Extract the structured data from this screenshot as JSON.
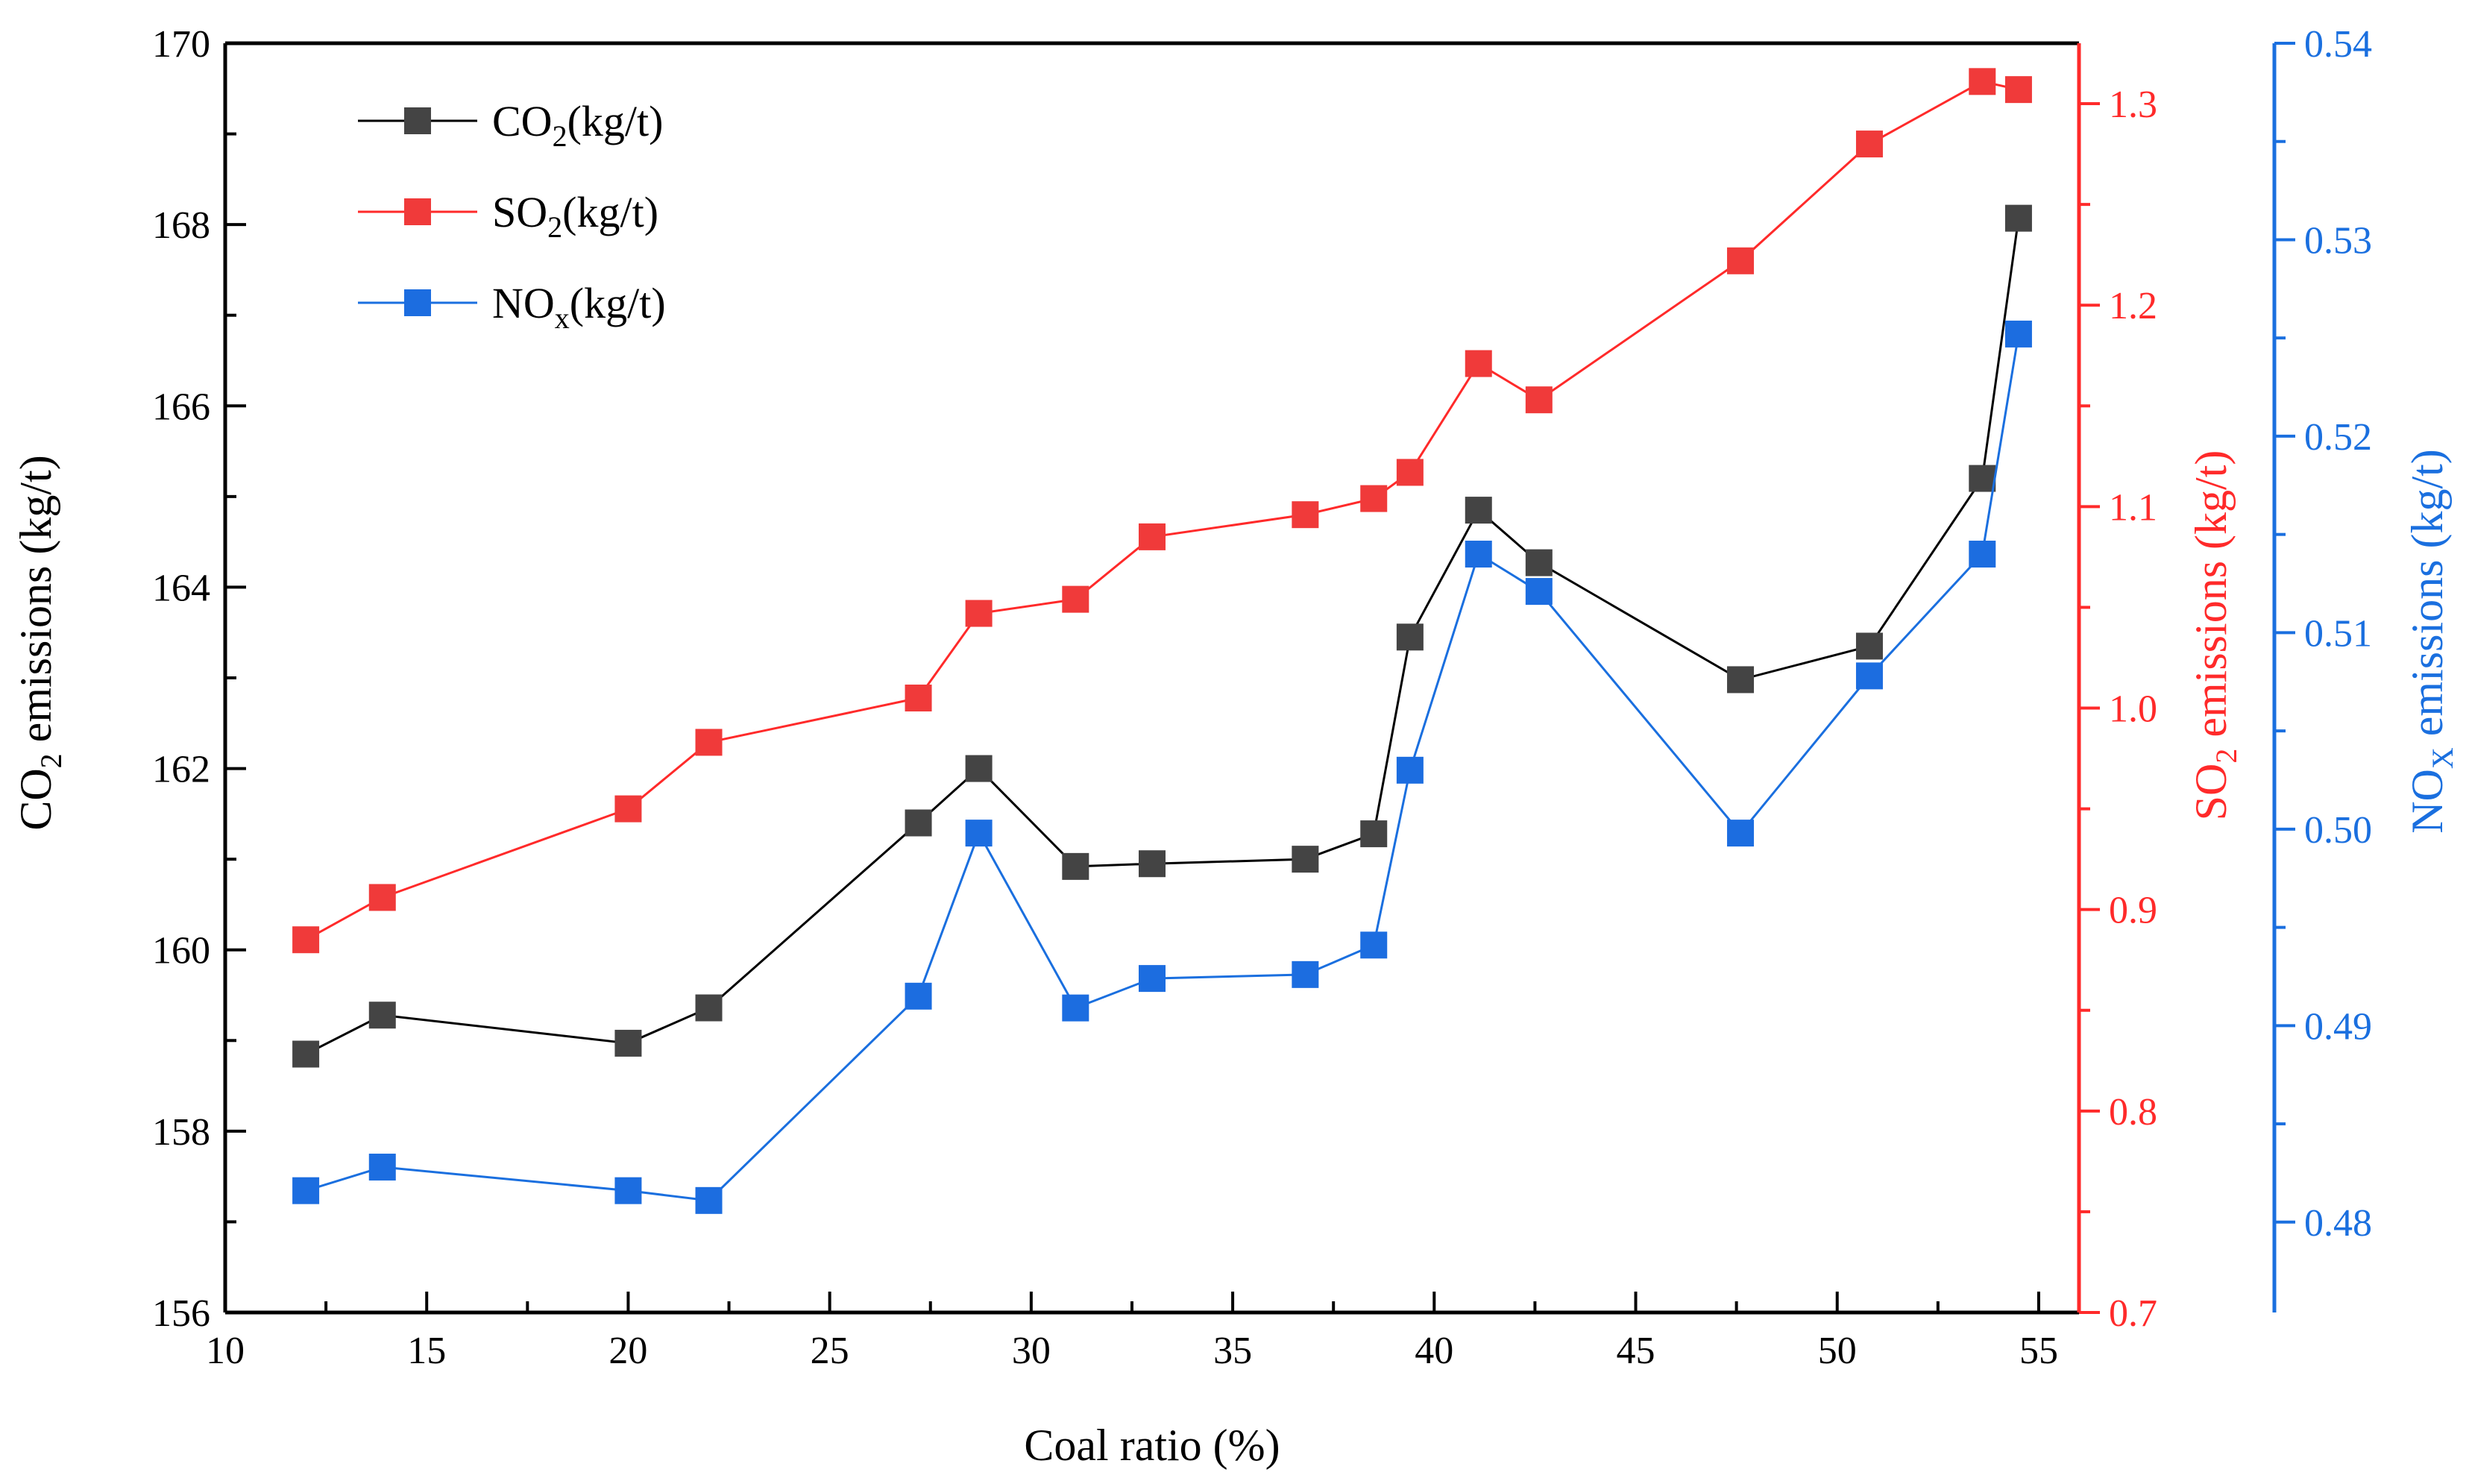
{
  "chart_data": {
    "type": "line",
    "xlabel": "Coal ratio (%)",
    "xlim": [
      10,
      56
    ],
    "xticks": [
      10,
      15,
      20,
      25,
      30,
      35,
      40,
      45,
      50,
      55
    ],
    "axes": {
      "left": {
        "label_main": "CO",
        "label_sub": "2",
        "label_rest": " emissions (kg/t)",
        "lim": [
          156,
          170
        ],
        "ticks": [
          156,
          158,
          160,
          162,
          164,
          166,
          168,
          170
        ],
        "decimals": 0,
        "color": "#000000"
      },
      "right1": {
        "label_main": "SO",
        "label_sub": "2",
        "label_rest": " emissions (kg/t)",
        "lim": [
          0.7,
          1.33
        ],
        "ticks": [
          0.7,
          0.8,
          0.9,
          1.0,
          1.1,
          1.2,
          1.3
        ],
        "decimals": 1,
        "color": "#ff2a2a"
      },
      "right2": {
        "label_main": "NO",
        "label_sub": "X",
        "label_rest": " emissions (kg/t)",
        "lim": [
          0.4754,
          0.54
        ],
        "ticks": [
          0.48,
          0.49,
          0.5,
          0.51,
          0.52,
          0.53,
          0.54
        ],
        "decimals": 2,
        "color": "#1a6fdf"
      }
    },
    "legend": {
      "placement": "top-left",
      "entries": [
        {
          "series": "co2",
          "main": "CO",
          "sub": "2",
          "rest": "(kg/t)"
        },
        {
          "series": "so2",
          "main": "SO",
          "sub": "2",
          "rest": "(kg/t)"
        },
        {
          "series": "nox",
          "main": "NO",
          "sub": "x",
          "rest": "(kg/t)"
        }
      ]
    },
    "series": [
      {
        "name": "CO2(kg/t)",
        "key": "co2",
        "axis": "left",
        "color": "#000000",
        "marker_color": "#444444",
        "x": [
          12.0,
          13.9,
          20.0,
          22.0,
          27.2,
          28.7,
          31.1,
          33.0,
          36.8,
          38.5,
          39.4,
          41.1,
          42.6,
          47.6,
          50.8,
          53.6,
          54.5
        ],
        "values": [
          158.85,
          159.28,
          158.97,
          159.36,
          161.4,
          162.0,
          160.92,
          160.95,
          161.0,
          161.28,
          163.45,
          164.85,
          164.27,
          162.98,
          163.35,
          165.2,
          168.07
        ]
      },
      {
        "name": "SO2(kg/t)",
        "key": "so2",
        "axis": "right1",
        "color": "#ff2a2a",
        "marker_color": "#f03a3a",
        "x": [
          12.0,
          13.9,
          20.0,
          22.0,
          27.2,
          28.7,
          31.1,
          33.0,
          36.8,
          38.5,
          39.4,
          41.1,
          42.6,
          47.6,
          50.8,
          53.6,
          54.5
        ],
        "values": [
          0.885,
          0.906,
          0.95,
          0.983,
          1.005,
          1.047,
          1.054,
          1.085,
          1.096,
          1.104,
          1.117,
          1.171,
          1.153,
          1.222,
          1.28,
          1.311,
          1.307
        ]
      },
      {
        "name": "NOx(kg/t)",
        "key": "nox",
        "axis": "right2",
        "color": "#1a6fdf",
        "marker_color": "#1c6de0",
        "x": [
          12.0,
          13.9,
          20.0,
          22.0,
          27.2,
          28.7,
          31.1,
          33.0,
          36.8,
          38.5,
          39.4,
          41.1,
          42.6,
          47.6,
          50.8,
          53.6,
          54.5
        ],
        "values": [
          0.4816,
          0.4828,
          0.4816,
          0.4811,
          0.4915,
          0.4998,
          0.4909,
          0.4924,
          0.4926,
          0.4941,
          0.503,
          0.514,
          0.5121,
          0.4998,
          0.5078,
          0.514,
          0.5252
        ]
      }
    ]
  }
}
